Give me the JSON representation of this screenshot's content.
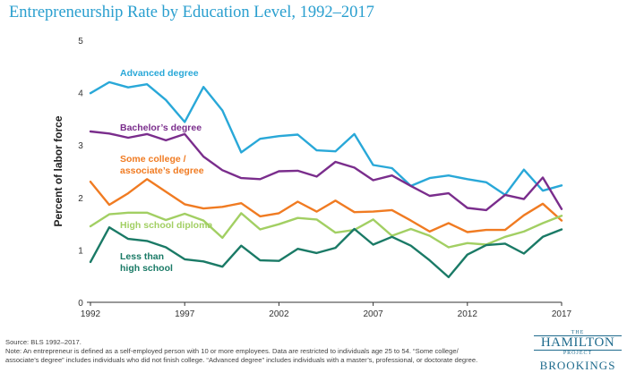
{
  "chart_data": {
    "type": "line",
    "title": "Entrepreneurship Rate by Education Level, 1992–2017",
    "ylabel": "Percent of labor force",
    "xlabel": "",
    "ylim": [
      0,
      5
    ],
    "xlim": [
      1992,
      2017
    ],
    "yticks": [
      "0",
      "1",
      "2",
      "3",
      "4",
      "5"
    ],
    "xticks": [
      "1992",
      "1997",
      "2002",
      "2007",
      "2012",
      "2017"
    ],
    "grid": false,
    "x": [
      1992,
      1993,
      1994,
      1995,
      1996,
      1997,
      1998,
      1999,
      2000,
      2001,
      2002,
      2003,
      2004,
      2005,
      2006,
      2007,
      2008,
      2009,
      2010,
      2011,
      2012,
      2013,
      2014,
      2015,
      2016,
      2017
    ],
    "series": [
      {
        "name": "Advanced degree",
        "color": "#29a8d8",
        "values": [
          3.99,
          4.2,
          4.1,
          4.16,
          3.86,
          3.44,
          4.11,
          3.66,
          2.86,
          3.12,
          3.17,
          3.2,
          2.9,
          2.88,
          3.21,
          2.62,
          2.56,
          2.22,
          2.37,
          2.42,
          2.35,
          2.29,
          2.05,
          2.53,
          2.13,
          2.23
        ]
      },
      {
        "name": "Bachelor’s degree",
        "color": "#7a2d8c",
        "values": [
          3.26,
          3.22,
          3.14,
          3.21,
          3.09,
          3.21,
          2.78,
          2.52,
          2.37,
          2.35,
          2.5,
          2.51,
          2.4,
          2.68,
          2.57,
          2.33,
          2.42,
          2.22,
          2.03,
          2.08,
          1.8,
          1.76,
          2.05,
          1.97,
          2.38,
          1.78
        ]
      },
      {
        "name": "Some college / associate’s degree",
        "color": "#f07b22",
        "values": [
          2.3,
          1.86,
          2.08,
          2.35,
          2.11,
          1.87,
          1.79,
          1.82,
          1.89,
          1.64,
          1.7,
          1.92,
          1.73,
          1.94,
          1.72,
          1.73,
          1.76,
          1.56,
          1.35,
          1.51,
          1.34,
          1.38,
          1.38,
          1.66,
          1.88,
          1.56
        ]
      },
      {
        "name": "High school diploma",
        "color": "#a2cf63",
        "values": [
          1.45,
          1.68,
          1.71,
          1.71,
          1.57,
          1.69,
          1.56,
          1.23,
          1.7,
          1.39,
          1.49,
          1.61,
          1.58,
          1.33,
          1.38,
          1.58,
          1.27,
          1.4,
          1.27,
          1.05,
          1.13,
          1.1,
          1.25,
          1.35,
          1.51,
          1.65
        ]
      },
      {
        "name": "Less than high school",
        "color": "#1a7a66",
        "values": [
          0.77,
          1.43,
          1.21,
          1.17,
          1.05,
          0.82,
          0.78,
          0.68,
          1.08,
          0.8,
          0.79,
          1.02,
          0.94,
          1.04,
          1.4,
          1.1,
          1.25,
          1.08,
          0.8,
          0.48,
          0.91,
          1.09,
          1.12,
          0.93,
          1.25,
          1.39
        ]
      }
    ],
    "annotations": [
      {
        "series": 0,
        "lines": [
          "Advanced degree"
        ]
      },
      {
        "series": 1,
        "lines": [
          "Bachelor’s degree"
        ]
      },
      {
        "series": 2,
        "lines": [
          "Some college /",
          "associate’s degree"
        ]
      },
      {
        "series": 3,
        "lines": [
          "High school diploma"
        ]
      },
      {
        "series": 4,
        "lines": [
          "Less than",
          "high school"
        ]
      }
    ]
  },
  "footer": {
    "source": "Source: BLS 1992–2017.",
    "note": "Note: An entrepreneur is defined as a self-employed person with 10 or more employees. Data are restricted to individuals age 25 to 54. “Some college/ associate’s degree” includes individuals who did not finish college. “Advanced degree” includes individuals with a master’s, professional, or doctorate degree."
  },
  "branding": {
    "the": "THE",
    "hamilton": "HAMILTON",
    "project": "PROJECT",
    "brookings": "BROOKINGS"
  }
}
